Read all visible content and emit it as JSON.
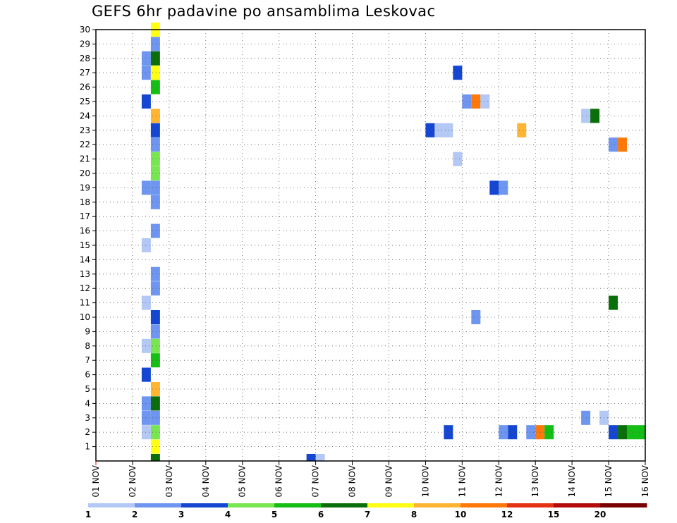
{
  "chart_data": {
    "type": "heatmap",
    "title": "GEFS 6hr padavine po ansamblima Leskovac",
    "grid": true,
    "x": {
      "ticks": [
        {
          "day": 1,
          "label": "01 NOV"
        },
        {
          "day": 2,
          "label": "02 NOV"
        },
        {
          "day": 3,
          "label": "03 NOV"
        },
        {
          "day": 4,
          "label": "04 NOV"
        },
        {
          "day": 5,
          "label": "05 NOV"
        },
        {
          "day": 6,
          "label": "06 NOV"
        },
        {
          "day": 7,
          "label": "07 NOV"
        },
        {
          "day": 8,
          "label": "08 NOV"
        },
        {
          "day": 9,
          "label": "09 NOV"
        },
        {
          "day": 10,
          "label": "10 NOV"
        },
        {
          "day": 11,
          "label": "11 NOV"
        },
        {
          "day": 12,
          "label": "12 NOV"
        },
        {
          "day": 13,
          "label": "13 NOV"
        },
        {
          "day": 14,
          "label": "14 NOV"
        },
        {
          "day": 15,
          "label": "15 NOV"
        },
        {
          "day": 16,
          "label": "16 NOV"
        }
      ],
      "range": [
        1,
        16
      ],
      "step_days": 0.25
    },
    "y": {
      "ticks": [
        1,
        2,
        3,
        4,
        5,
        6,
        7,
        8,
        9,
        10,
        11,
        12,
        13,
        14,
        15,
        16,
        17,
        18,
        19,
        20,
        21,
        22,
        23,
        24,
        25,
        26,
        27,
        28,
        29,
        30
      ],
      "range": [
        0,
        30
      ]
    },
    "legend": {
      "placement": "bottom",
      "colors": [
        "#b4c8f5",
        "#6e96f0",
        "#1446d2",
        "#78e650",
        "#14be14",
        "#0a6e0a",
        "#ffff14",
        "#ffb432",
        "#ff780a",
        "#e63214",
        "#b40a0a",
        "#780000"
      ],
      "labels": [
        "1",
        "2",
        "3",
        "4",
        "5",
        "6",
        "7",
        "8",
        "10",
        "12",
        "15",
        "20"
      ]
    },
    "cells": [
      {
        "member": 30,
        "start": "02 NOV 12Z",
        "value": 7
      },
      {
        "member": 29,
        "start": "02 NOV 12Z",
        "value": 2
      },
      {
        "member": 28,
        "start": "02 NOV 06Z",
        "value": 2
      },
      {
        "member": 28,
        "start": "02 NOV 12Z",
        "value": 6
      },
      {
        "member": 27,
        "start": "02 NOV 06Z",
        "value": 2
      },
      {
        "member": 27,
        "start": "02 NOV 12Z",
        "value": 7
      },
      {
        "member": 27,
        "start": "10 NOV 18Z",
        "value": 3
      },
      {
        "member": 26,
        "start": "02 NOV 12Z",
        "value": 5
      },
      {
        "member": 25,
        "start": "02 NOV 06Z",
        "value": 3
      },
      {
        "member": 25,
        "start": "11 NOV 00Z",
        "value": 2
      },
      {
        "member": 25,
        "start": "11 NOV 06Z",
        "value": 10
      },
      {
        "member": 25,
        "start": "11 NOV 12Z",
        "value": 1
      },
      {
        "member": 24,
        "start": "02 NOV 12Z",
        "value": 8
      },
      {
        "member": 24,
        "start": "14 NOV 06Z",
        "value": 1
      },
      {
        "member": 24,
        "start": "14 NOV 12Z",
        "value": 6
      },
      {
        "member": 23,
        "start": "02 NOV 12Z",
        "value": 3
      },
      {
        "member": 23,
        "start": "10 NOV 00Z",
        "value": 3
      },
      {
        "member": 23,
        "start": "10 NOV 06Z",
        "value": 1
      },
      {
        "member": 23,
        "start": "10 NOV 12Z",
        "value": 1
      },
      {
        "member": 23,
        "start": "12 NOV 12Z",
        "value": 8
      },
      {
        "member": 22,
        "start": "02 NOV 12Z",
        "value": 2
      },
      {
        "member": 22,
        "start": "15 NOV 00Z",
        "value": 2
      },
      {
        "member": 22,
        "start": "15 NOV 06Z",
        "value": 10
      },
      {
        "member": 21,
        "start": "02 NOV 12Z",
        "value": 4
      },
      {
        "member": 21,
        "start": "10 NOV 18Z",
        "value": 1
      },
      {
        "member": 20,
        "start": "02 NOV 12Z",
        "value": 4
      },
      {
        "member": 19,
        "start": "02 NOV 06Z",
        "value": 2
      },
      {
        "member": 19,
        "start": "02 NOV 12Z",
        "value": 2
      },
      {
        "member": 19,
        "start": "11 NOV 18Z",
        "value": 3
      },
      {
        "member": 19,
        "start": "12 NOV 00Z",
        "value": 2
      },
      {
        "member": 18,
        "start": "02 NOV 12Z",
        "value": 2
      },
      {
        "member": 16,
        "start": "02 NOV 12Z",
        "value": 2
      },
      {
        "member": 15,
        "start": "02 NOV 06Z",
        "value": 1
      },
      {
        "member": 13,
        "start": "02 NOV 12Z",
        "value": 2
      },
      {
        "member": 12,
        "start": "02 NOV 12Z",
        "value": 2
      },
      {
        "member": 11,
        "start": "02 NOV 06Z",
        "value": 1
      },
      {
        "member": 11,
        "start": "15 NOV 00Z",
        "value": 6
      },
      {
        "member": 10,
        "start": "02 NOV 12Z",
        "value": 3
      },
      {
        "member": 10,
        "start": "11 NOV 06Z",
        "value": 2
      },
      {
        "member": 9,
        "start": "02 NOV 12Z",
        "value": 2
      },
      {
        "member": 8,
        "start": "02 NOV 06Z",
        "value": 1
      },
      {
        "member": 8,
        "start": "02 NOV 12Z",
        "value": 4
      },
      {
        "member": 7,
        "start": "02 NOV 12Z",
        "value": 5
      },
      {
        "member": 6,
        "start": "02 NOV 06Z",
        "value": 3
      },
      {
        "member": 5,
        "start": "02 NOV 12Z",
        "value": 8
      },
      {
        "member": 4,
        "start": "02 NOV 06Z",
        "value": 2
      },
      {
        "member": 4,
        "start": "02 NOV 12Z",
        "value": 6
      },
      {
        "member": 3,
        "start": "02 NOV 06Z",
        "value": 2
      },
      {
        "member": 3,
        "start": "02 NOV 12Z",
        "value": 2
      },
      {
        "member": 3,
        "start": "14 NOV 06Z",
        "value": 2
      },
      {
        "member": 3,
        "start": "14 NOV 18Z",
        "value": 1
      },
      {
        "member": 2,
        "start": "02 NOV 06Z",
        "value": 1
      },
      {
        "member": 2,
        "start": "02 NOV 12Z",
        "value": 4
      },
      {
        "member": 2,
        "start": "10 NOV 12Z",
        "value": 3
      },
      {
        "member": 2,
        "start": "12 NOV 00Z",
        "value": 2
      },
      {
        "member": 2,
        "start": "12 NOV 06Z",
        "value": 3
      },
      {
        "member": 2,
        "start": "12 NOV 18Z",
        "value": 2
      },
      {
        "member": 2,
        "start": "13 NOV 00Z",
        "value": 10
      },
      {
        "member": 2,
        "start": "13 NOV 06Z",
        "value": 5
      },
      {
        "member": 2,
        "start": "15 NOV 00Z",
        "value": 3
      },
      {
        "member": 2,
        "start": "15 NOV 06Z",
        "value": 6
      },
      {
        "member": 2,
        "start": "15 NOV 12Z",
        "value": 5
      },
      {
        "member": 2,
        "start": "15 NOV 18Z",
        "value": 5
      },
      {
        "member": 1,
        "start": "02 NOV 12Z",
        "value": 7
      },
      {
        "member": 0,
        "start": "02 NOV 12Z",
        "value": 6
      },
      {
        "member": 0,
        "start": "06 NOV 18Z",
        "value": 3
      },
      {
        "member": 0,
        "start": "07 NOV 00Z",
        "value": 1
      }
    ]
  }
}
